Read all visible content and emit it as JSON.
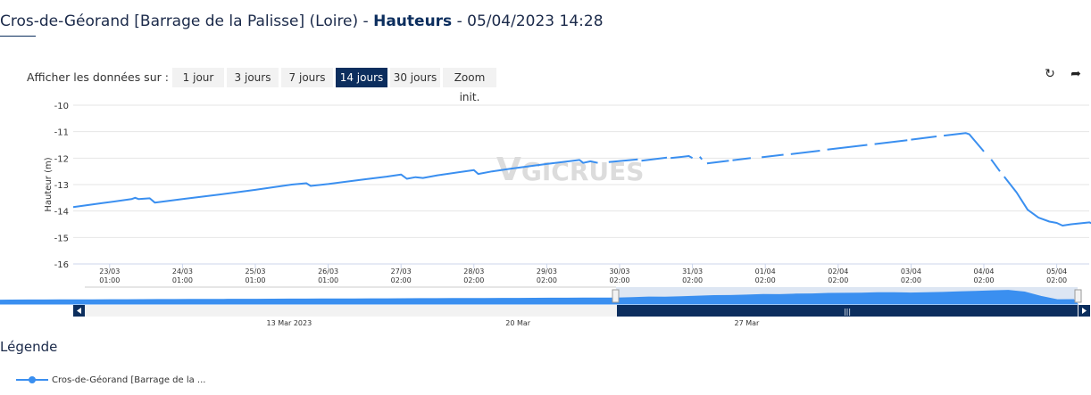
{
  "header": {
    "station": "Cros-de-Géorand [Barrage de la Palisse] (Loire)",
    "separator": " - ",
    "measure": "Hauteurs",
    "datetime": " - 05/04/2023 14:28"
  },
  "range_selector": {
    "label": "Afficher les données sur :",
    "buttons": [
      "1 jour",
      "3 jours",
      "7 jours",
      "14 jours",
      "30 jours",
      "Zoom init."
    ],
    "active": "14 jours"
  },
  "toolbar": {
    "refresh_icon": "refresh-icon",
    "share_icon": "share-arrow-icon"
  },
  "watermark": {
    "part1": "V",
    "part2": "GICRUES"
  },
  "chart_data": {
    "type": "line",
    "ylabel": "Hauteur (m)",
    "ylim": [
      -16,
      -10
    ],
    "yticks": [
      -10,
      -11,
      -12,
      -13,
      -14,
      -15,
      -16
    ],
    "x_ticks": [
      {
        "day": 0.5,
        "date": "23/03",
        "time": "01:00"
      },
      {
        "day": 1.5,
        "date": "24/03",
        "time": "01:00"
      },
      {
        "day": 2.5,
        "date": "25/03",
        "time": "01:00"
      },
      {
        "day": 3.5,
        "date": "26/03",
        "time": "01:00"
      },
      {
        "day": 4.5,
        "date": "27/03",
        "time": "02:00"
      },
      {
        "day": 5.5,
        "date": "28/03",
        "time": "02:00"
      },
      {
        "day": 6.5,
        "date": "29/03",
        "time": "02:00"
      },
      {
        "day": 7.5,
        "date": "30/03",
        "time": "02:00"
      },
      {
        "day": 8.5,
        "date": "31/03",
        "time": "02:00"
      },
      {
        "day": 9.5,
        "date": "01/04",
        "time": "02:00"
      },
      {
        "day": 10.5,
        "date": "02/04",
        "time": "02:00"
      },
      {
        "day": 11.5,
        "date": "03/04",
        "time": "02:00"
      },
      {
        "day": 12.5,
        "date": "04/04",
        "time": "02:00"
      },
      {
        "day": 13.5,
        "date": "05/04",
        "time": "02:00"
      }
    ],
    "now_label": "14:28",
    "series": [
      {
        "color": "#3a8ff0",
        "segments": [
          [
            [
              0.0,
              -13.85
            ],
            [
              0.4,
              -13.7
            ],
            [
              0.8,
              -13.55
            ],
            [
              0.85,
              -13.5
            ],
            [
              0.9,
              -13.55
            ],
            [
              1.05,
              -13.52
            ],
            [
              1.12,
              -13.68
            ],
            [
              1.5,
              -13.55
            ],
            [
              2.0,
              -13.38
            ],
            [
              2.5,
              -13.2
            ],
            [
              3.0,
              -13.0
            ],
            [
              3.2,
              -12.95
            ],
            [
              3.26,
              -13.05
            ],
            [
              3.5,
              -12.98
            ],
            [
              4.0,
              -12.8
            ],
            [
              4.3,
              -12.7
            ],
            [
              4.5,
              -12.62
            ],
            [
              4.58,
              -12.78
            ],
            [
              4.7,
              -12.72
            ],
            [
              4.8,
              -12.75
            ],
            [
              5.0,
              -12.65
            ],
            [
              5.5,
              -12.45
            ],
            [
              5.56,
              -12.6
            ],
            [
              5.75,
              -12.5
            ],
            [
              6.0,
              -12.4
            ],
            [
              6.5,
              -12.22
            ],
            [
              6.95,
              -12.07
            ],
            [
              7.0,
              -12.18
            ],
            [
              7.1,
              -12.12
            ],
            [
              7.2,
              -12.18
            ]
          ],
          [
            [
              7.35,
              -12.15
            ],
            [
              7.75,
              -12.05
            ]
          ],
          [
            [
              7.8,
              -12.1
            ],
            [
              8.15,
              -11.98
            ]
          ],
          [
            [
              8.2,
              -12.0
            ],
            [
              8.45,
              -11.92
            ],
            [
              8.5,
              -12.0
            ]
          ],
          [
            [
              8.6,
              -11.95
            ],
            [
              8.63,
              -12.05
            ]
          ],
          [
            [
              8.7,
              -12.2
            ],
            [
              9.0,
              -12.1
            ]
          ],
          [
            [
              9.05,
              -12.08
            ],
            [
              9.3,
              -12.0
            ]
          ],
          [
            [
              9.45,
              -11.97
            ],
            [
              9.75,
              -11.87
            ]
          ],
          [
            [
              9.85,
              -11.85
            ],
            [
              10.25,
              -11.72
            ]
          ],
          [
            [
              10.35,
              -11.68
            ],
            [
              10.9,
              -11.5
            ]
          ],
          [
            [
              11.0,
              -11.47
            ],
            [
              11.45,
              -11.32
            ]
          ],
          [
            [
              11.5,
              -11.3
            ],
            [
              11.85,
              -11.18
            ]
          ],
          [
            [
              11.95,
              -11.15
            ],
            [
              12.25,
              -11.05
            ],
            [
              12.3,
              -11.1
            ],
            [
              12.5,
              -11.75
            ]
          ],
          [
            [
              12.6,
              -12.05
            ],
            [
              12.72,
              -12.5
            ]
          ],
          [
            [
              12.78,
              -12.7
            ],
            [
              12.95,
              -13.3
            ],
            [
              13.1,
              -13.95
            ],
            [
              13.25,
              -14.25
            ],
            [
              13.4,
              -14.4
            ],
            [
              13.5,
              -14.45
            ],
            [
              13.58,
              -14.55
            ],
            [
              13.7,
              -14.5
            ],
            [
              13.95,
              -14.43
            ],
            [
              14.05,
              -14.55
            ],
            [
              14.12,
              -14.62
            ]
          ]
        ]
      }
    ]
  },
  "navigator": {
    "labels": [
      {
        "day": -10,
        "text": "13 Mar 2023"
      },
      {
        "day": -3,
        "text": "20 Mar"
      },
      {
        "day": 4,
        "text": "27 Mar"
      }
    ],
    "scroll_grip": "|||"
  },
  "legend": {
    "title": "Légende",
    "items": [
      {
        "name": "Cros-de-Géorand [Barrage de la ..."
      }
    ]
  }
}
